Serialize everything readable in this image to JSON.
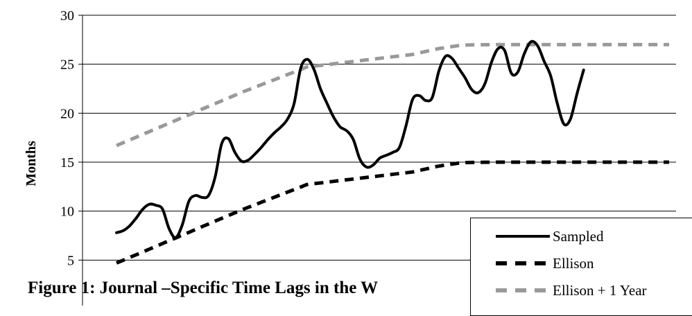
{
  "chart_data": {
    "type": "line",
    "title": "",
    "xlabel": "",
    "ylabel": "Months",
    "ylim": [
      0,
      30
    ],
    "yticks": [
      5,
      10,
      15,
      20,
      25,
      30
    ],
    "grid": true,
    "legend_placement": "bottom-right",
    "x": [
      1,
      2,
      3,
      4,
      5,
      6,
      7,
      8,
      9,
      10,
      11,
      12,
      13,
      14,
      15,
      16,
      17,
      18,
      19,
      20,
      21,
      22,
      23,
      24,
      25,
      26,
      27,
      28,
      29,
      30,
      31,
      32,
      33,
      34,
      35,
      36,
      37,
      38,
      39,
      40,
      41,
      42,
      43,
      44,
      45,
      46,
      47,
      48,
      49,
      50,
      51,
      52,
      53,
      54,
      55,
      56,
      57,
      58,
      59,
      60,
      61,
      62,
      63,
      64,
      65,
      66,
      67,
      68,
      69,
      70,
      71,
      72,
      73,
      74,
      75,
      76,
      77,
      78,
      79,
      80,
      81,
      82,
      83,
      84,
      85
    ],
    "series": [
      {
        "name": "Sampled",
        "color": "#000000",
        "dash": "solid",
        "values": [
          7.8,
          8.0,
          8.5,
          9.3,
          10.2,
          10.7,
          10.6,
          10.2,
          8.2,
          7.3,
          8.6,
          11.0,
          11.6,
          11.4,
          11.6,
          13.5,
          16.9,
          17.4,
          16.0,
          15.1,
          15.2,
          15.8,
          16.5,
          17.3,
          18.0,
          18.6,
          19.4,
          21.0,
          24.6,
          25.5,
          24.5,
          22.5,
          21.0,
          19.6,
          18.6,
          18.2,
          17.3,
          15.3,
          14.5,
          14.7,
          15.4,
          15.7,
          16.0,
          16.5,
          18.7,
          21.4,
          21.8,
          21.3,
          21.6,
          24.3,
          25.8,
          25.6,
          24.6,
          23.6,
          22.4,
          22.1,
          23.0,
          25.2,
          26.6,
          26.4,
          24.1,
          24.2,
          26.1,
          27.3,
          26.9,
          25.3,
          23.8,
          21.0,
          18.9,
          19.4,
          22.0,
          24.4,
          null,
          null,
          null,
          null,
          null,
          null,
          null,
          null,
          null,
          null,
          null,
          null,
          null
        ]
      },
      {
        "name": "Ellison",
        "color": "#000000",
        "dash": "dashed",
        "values": [
          4.7,
          4.98,
          5.27,
          5.55,
          5.84,
          6.12,
          6.41,
          6.69,
          6.98,
          7.26,
          7.55,
          7.83,
          8.12,
          8.41,
          8.69,
          8.98,
          9.26,
          9.55,
          9.83,
          10.12,
          10.38,
          10.64,
          10.9,
          11.16,
          11.42,
          11.68,
          11.94,
          12.2,
          12.46,
          12.72,
          12.8,
          12.88,
          12.96,
          13.04,
          13.12,
          13.2,
          13.28,
          13.36,
          13.44,
          13.52,
          13.6,
          13.68,
          13.76,
          13.84,
          13.92,
          14.0,
          14.15,
          14.3,
          14.45,
          14.6,
          14.7,
          14.8,
          14.9,
          14.95,
          14.97,
          14.98,
          14.99,
          14.99,
          15.0,
          15.0,
          15.0,
          15.0,
          15.0,
          15.0,
          15.0,
          15.0,
          15.0,
          15.0,
          15.0,
          15.0,
          15.0,
          15.0,
          15.0,
          15.0,
          15.0,
          15.0,
          15.0,
          15.0,
          15.0,
          15.0,
          15.0,
          15.0,
          15.0,
          15.0,
          15.0
        ]
      },
      {
        "name": "Ellison + 1 Year",
        "color": "#999999",
        "dash": "dashed",
        "values": [
          16.7,
          16.98,
          17.27,
          17.55,
          17.84,
          18.12,
          18.41,
          18.69,
          18.98,
          19.26,
          19.55,
          19.83,
          20.12,
          20.41,
          20.69,
          20.98,
          21.26,
          21.55,
          21.83,
          22.12,
          22.38,
          22.64,
          22.9,
          23.16,
          23.42,
          23.68,
          23.94,
          24.2,
          24.46,
          24.72,
          24.8,
          24.88,
          24.96,
          25.04,
          25.12,
          25.2,
          25.28,
          25.36,
          25.44,
          25.52,
          25.6,
          25.68,
          25.76,
          25.84,
          25.92,
          26.0,
          26.15,
          26.3,
          26.45,
          26.6,
          26.7,
          26.8,
          26.9,
          26.95,
          26.97,
          26.98,
          26.99,
          26.99,
          27.0,
          27.0,
          27.0,
          27.0,
          27.0,
          27.0,
          27.0,
          27.0,
          27.0,
          27.0,
          27.0,
          27.0,
          27.0,
          27.0,
          27.0,
          27.0,
          27.0,
          27.0,
          27.0,
          27.0,
          27.0,
          27.0,
          27.0,
          27.0,
          27.0,
          27.0,
          27.0
        ]
      }
    ]
  },
  "caption": "Figure 1: Journal –Specific Time Lags in the W"
}
